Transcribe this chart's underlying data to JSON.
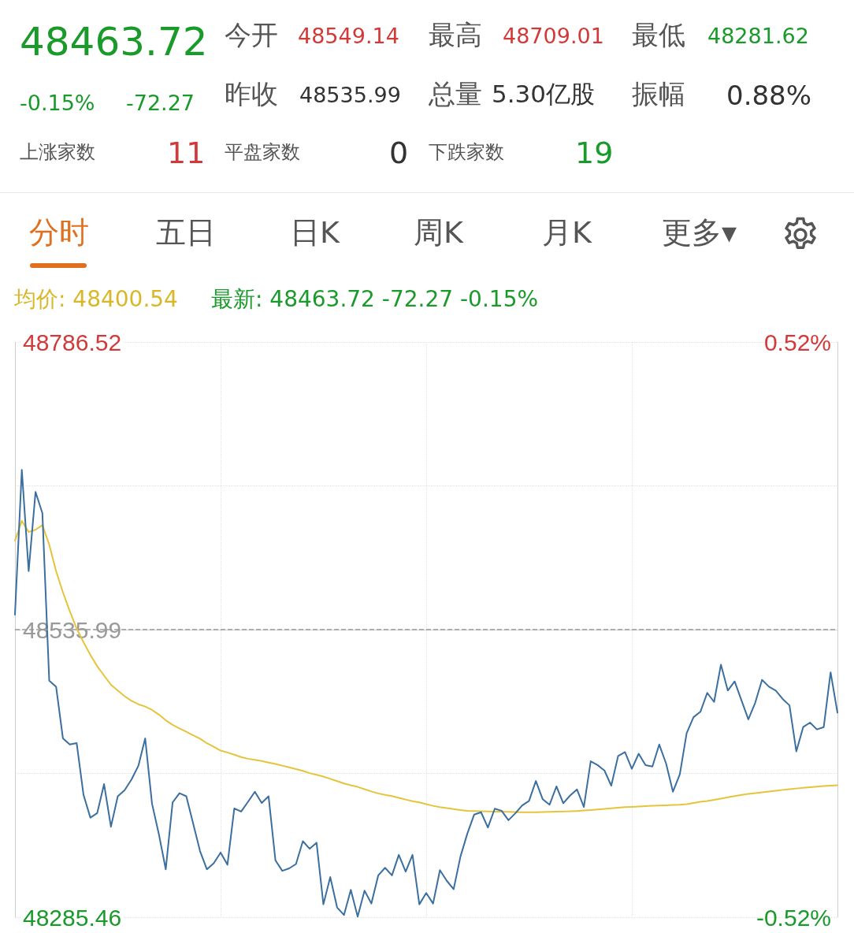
{
  "chart_data": {
    "type": "line",
    "annotations": [
      "48463.72",
      "-0.15%",
      "-72.27",
      "上涨家数",
      "11",
      "今开",
      "48549.14",
      "昨收",
      "48535.99",
      "平盘家数",
      "0",
      "最高",
      "48709.01",
      "总量",
      "5.30亿股",
      "下跌家数",
      "19",
      "最低",
      "48281.62",
      "振幅",
      "0.88%",
      "分时",
      "五日",
      "日K",
      "周K",
      "月K",
      "更多▾",
      "均价: 48400.54",
      "最新: 48463.72 -72.27 -0.15%"
    ],
    "categories": [
      null,
      null,
      null,
      null,
      null,
      null,
      null,
      null,
      null,
      null,
      null,
      null,
      null,
      null,
      null,
      null,
      null,
      null,
      null,
      null,
      null,
      null,
      null,
      null,
      null,
      null,
      null,
      null,
      null,
      null,
      null,
      null,
      null,
      null,
      null,
      null,
      null,
      null,
      null,
      null,
      null,
      null,
      null,
      null,
      null,
      null,
      null,
      null,
      null,
      null,
      null,
      null,
      null,
      null,
      null,
      null,
      null,
      null,
      null,
      null,
      null,
      null,
      null,
      null,
      null,
      null,
      null,
      null,
      null,
      null,
      null,
      null,
      null,
      null,
      null,
      null,
      null,
      null,
      null,
      null,
      null,
      null,
      null,
      null,
      null,
      null,
      null,
      null,
      null,
      null,
      null,
      null,
      null,
      null,
      null,
      null,
      null,
      null,
      null,
      null,
      null,
      null,
      null,
      null,
      null,
      null,
      null,
      null,
      null,
      null,
      null,
      null,
      null,
      null,
      null,
      null,
      null,
      null,
      null,
      null,
      null
    ],
    "ylim": [
      48285.46,
      48786.52
    ],
    "yticks": [
      48786.52,
      {
        "value": 48661.255,
        "label": null
      },
      48535.99,
      {
        "value": 48410.725,
        "label": null
      },
      48285.46
    ],
    "y2lim": [
      -0.52,
      0.52
    ],
    "y2ticks": [
      {
        "value": 0.52,
        "label": "0.52%"
      },
      {
        "value": -0.52,
        "label": "-0.52%"
      }
    ],
    "tick_labels": "y",
    "ref_lines": [
      {
        "axis": "y",
        "value": 48535.99,
        "color": "#999999",
        "line_style": "dashed"
      }
    ],
    "grid": true,
    "line_style": "solid",
    "series": [
      {
        "color": "#3b6f9f",
        "values": [
          48549.1,
          48675.1,
          48587.0,
          48655.9,
          48637.4,
          48491.6,
          48486.3,
          48441.2,
          48435.9,
          48437.2,
          48392.1,
          48372.2,
          48376.2,
          48401.4,
          48364.3,
          48390.8,
          48396.1,
          48405.4,
          48417.3,
          48441.2,
          48384.2,
          48357.7,
          48327.2,
          48385.5,
          48393.5,
          48390.8,
          48366.9,
          48343.1,
          48327.2,
          48332.5,
          48341.8,
          48331.2,
          48380.2,
          48377.5,
          48386.0,
          48394.8,
          48385.0,
          48390.8,
          48335.1,
          48325.9,
          48328.0,
          48331.8,
          48351.7,
          48345.1,
          48350.4,
          48296.7,
          48320.5,
          48294.0,
          48287.4,
          48309.3,
          48286.0,
          48308.6,
          48297.4,
          48321.9,
          48328.5,
          48321.9,
          48339.8,
          48325.2,
          48339.8,
          48296.7,
          48306.6,
          48297.4,
          48326.5,
          48317.2,
          48309.9,
          48338.4,
          48358.3,
          48374.9,
          48376.9,
          48363.6,
          48380.0,
          48378.2,
          48370.0,
          48376.0,
          48382.9,
          48386.8,
          48404.1,
          48388.2,
          48383.5,
          48399.4,
          48384.8,
          48391.5,
          48396.8,
          48381.5,
          48421.3,
          48418.0,
          48413.3,
          48400.1,
          48425.9,
          48429.3,
          48414.7,
          48427.9,
          48418.0,
          48416.7,
          48435.9,
          48419.3,
          48394.8,
          48410.0,
          48445.8,
          48459.7,
          48464.4,
          48480.9,
          48473.0,
          48505.5,
          48482.9,
          48490.9,
          48474.3,
          48457.8,
          48472.3,
          48492.2,
          48486.3,
          48482.9,
          48475.6,
          48470.0,
          48429.9,
          48451.1,
          48455.0,
          48449.1,
          48451.1,
          48498.8,
          48463.7
        ]
      },
      {
        "color": "#e5c43c",
        "values": [
          48613.5,
          48630.7,
          48621.0,
          48623.0,
          48627.0,
          48610.0,
          48587.0,
          48568.4,
          48552.0,
          48537.0,
          48525.0,
          48514.0,
          48504.0,
          48496.0,
          48488.0,
          48483.0,
          48478.0,
          48474.0,
          48471.0,
          48469.0,
          48466.0,
          48462.0,
          48457.0,
          48453.0,
          48450.0,
          48447.0,
          48444.0,
          48441.0,
          48437.0,
          48434.0,
          48430.6,
          48429.0,
          48427.0,
          48425.0,
          48423.5,
          48422.5,
          48421.5,
          48420.2,
          48419.0,
          48417.5,
          48416.0,
          48414.5,
          48413.0,
          48411.0,
          48409.5,
          48408.0,
          48406.0,
          48404.0,
          48402.0,
          48400.4,
          48399.0,
          48397.0,
          48395.0,
          48393.3,
          48392.0,
          48391.0,
          48389.5,
          48388.0,
          48386.5,
          48385.5,
          48384.0,
          48382.5,
          48381.4,
          48380.5,
          48379.6,
          48378.8,
          48378.2,
          48378.0,
          48377.8,
          48377.6,
          48377.5,
          48377.4,
          48377.2,
          48377.1,
          48377.0,
          48377.0,
          48377.0,
          48377.1,
          48377.3,
          48377.4,
          48377.6,
          48377.7,
          48378.0,
          48378.4,
          48378.8,
          48379.3,
          48379.8,
          48380.3,
          48380.8,
          48381.3,
          48381.6,
          48381.9,
          48382.2,
          48382.5,
          48382.7,
          48383.0,
          48383.2,
          48383.5,
          48384.0,
          48385.0,
          48386.0,
          48386.7,
          48387.8,
          48388.8,
          48389.9,
          48391.0,
          48392.0,
          48392.8,
          48393.5,
          48394.2,
          48395.0,
          48395.7,
          48396.4,
          48397.0,
          48397.6,
          48398.2,
          48398.7,
          48399.2,
          48399.7,
          48400.1,
          48400.5
        ]
      }
    ]
  }
}
